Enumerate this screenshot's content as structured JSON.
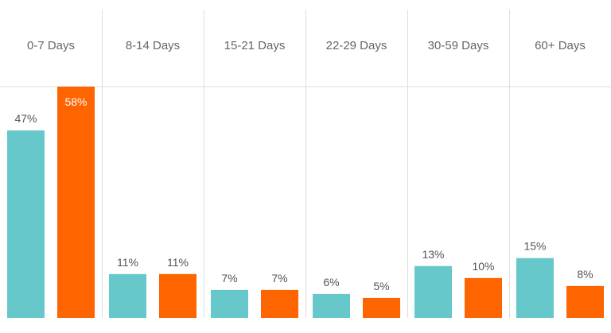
{
  "chart_data": {
    "type": "bar",
    "categories": [
      "0-7 Days",
      "8-14 Days",
      "15-21 Days",
      "22-29 Days",
      "30-59 Days",
      "60+ Days"
    ],
    "series": [
      {
        "values": [
          47,
          11,
          7,
          6,
          13,
          15
        ],
        "labels": [
          "47%",
          "11%",
          "7%",
          "6%",
          "13%",
          "15%"
        ],
        "color": "#67c8cb"
      },
      {
        "values": [
          58,
          11,
          7,
          5,
          10,
          8
        ],
        "labels": [
          "58%",
          "11%",
          "7%",
          "5%",
          "10%",
          "8%"
        ],
        "color": "#fe6400"
      }
    ],
    "ylim": [
      0,
      58
    ],
    "grid": false,
    "legend": "none",
    "header_bar_label_color": "#ffffff",
    "label_color": "#555555",
    "divider_color": "#dddddd"
  }
}
